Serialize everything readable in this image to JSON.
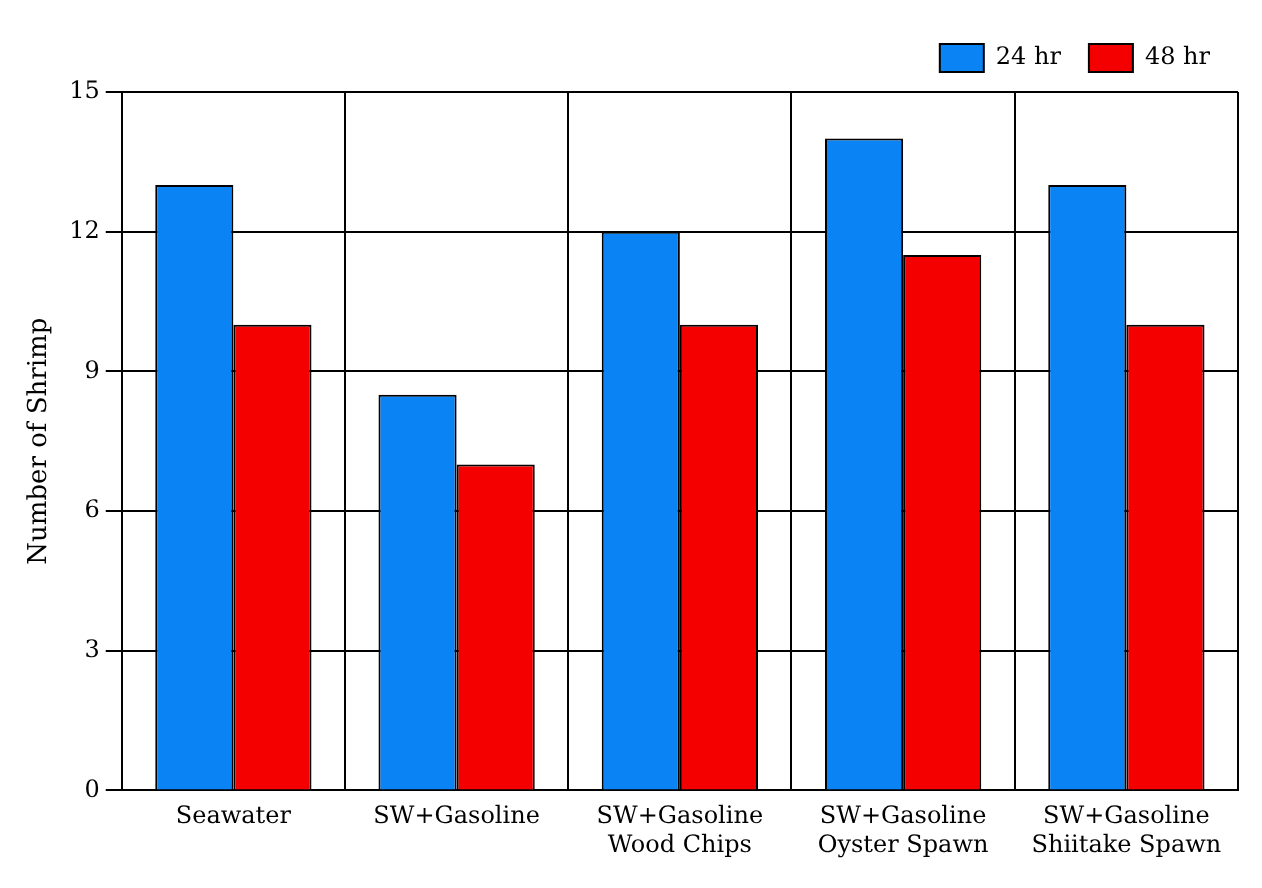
{
  "chart_data": {
    "type": "bar",
    "ylabel": "Number of Shrimp",
    "categories": [
      "Seawater",
      "SW+Gasoline",
      "SW+Gasoline\nWood Chips",
      "SW+Gasoline\nOyster Spawn",
      "SW+Gasoline\nShiitake Spawn"
    ],
    "series": [
      {
        "name": "24 hr",
        "color": "#0a84f5",
        "values": [
          13,
          8.5,
          12,
          14,
          13
        ]
      },
      {
        "name": "48 hr",
        "color": "#f50000",
        "values": [
          10,
          7,
          10,
          11.5,
          10
        ]
      }
    ],
    "ylim": [
      0,
      15
    ],
    "yticks": [
      0,
      3,
      6,
      9,
      12,
      15
    ],
    "grid": true,
    "legend": "top right"
  }
}
